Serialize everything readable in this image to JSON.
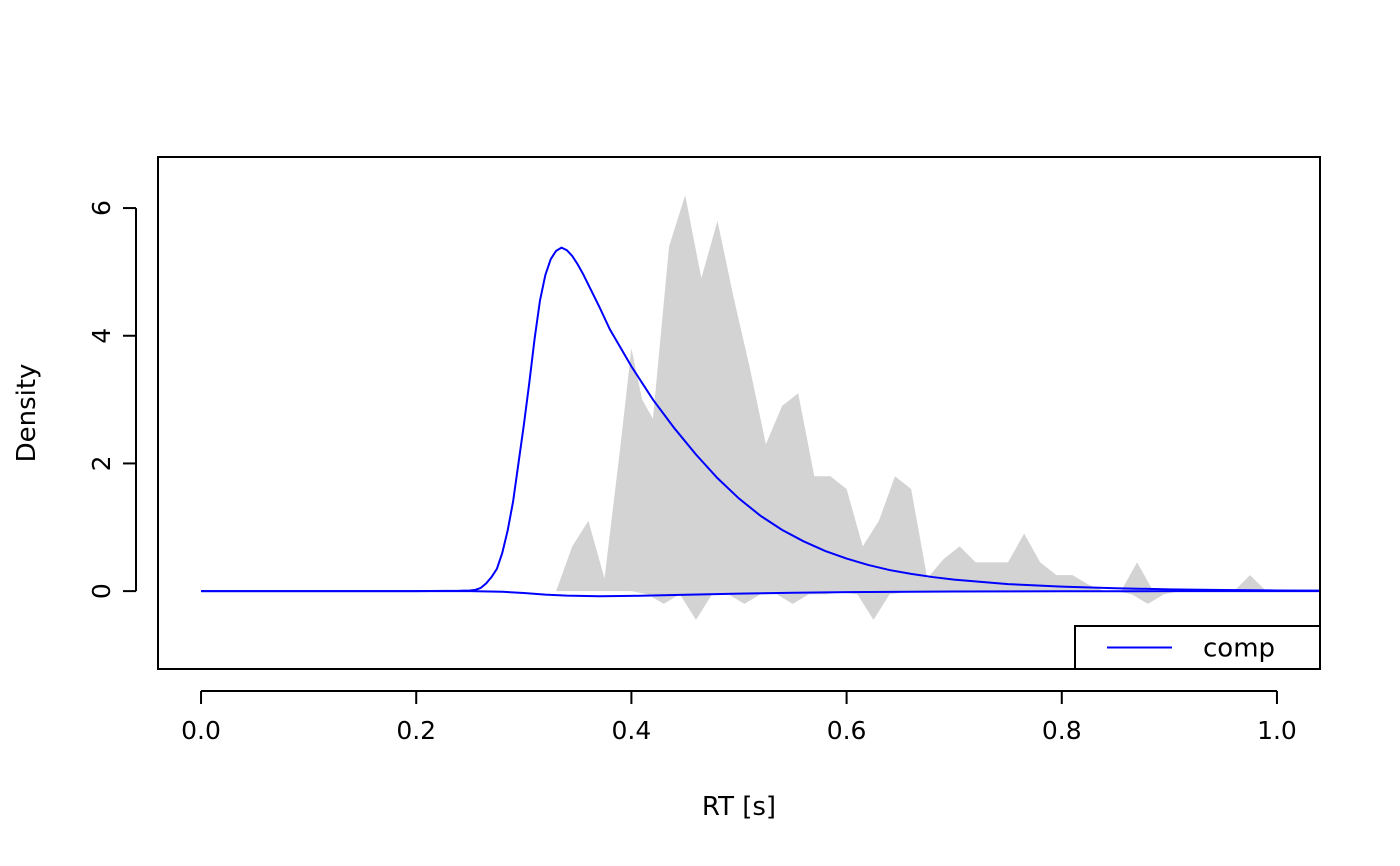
{
  "chart_data": {
    "type": "area",
    "xlabel": "RT [s]",
    "ylabel": "Density",
    "xlim": [
      -0.04,
      1.04
    ],
    "ylim": [
      -1.22,
      6.8
    ],
    "x_ticks": [
      0.0,
      0.2,
      0.4,
      0.6,
      0.8,
      1.0
    ],
    "x_tick_labels": [
      "0.0",
      "0.2",
      "0.4",
      "0.6",
      "0.8",
      "1.0"
    ],
    "y_ticks": [
      0,
      2,
      4,
      6
    ],
    "y_tick_labels": [
      "0",
      "2",
      "4",
      "6"
    ],
    "grid": false,
    "legend": {
      "position": "bottom-right",
      "entries": [
        {
          "label": "comp",
          "color": "#0000ff"
        }
      ]
    },
    "series": [
      {
        "name": "comp",
        "kind": "line",
        "color": "#0000ff",
        "x": [
          0.0,
          0.2,
          0.24,
          0.25,
          0.255,
          0.26,
          0.265,
          0.27,
          0.275,
          0.28,
          0.285,
          0.29,
          0.295,
          0.3,
          0.305,
          0.31,
          0.315,
          0.32,
          0.325,
          0.33,
          0.335,
          0.34,
          0.345,
          0.35,
          0.355,
          0.36,
          0.37,
          0.38,
          0.4,
          0.42,
          0.44,
          0.46,
          0.48,
          0.5,
          0.52,
          0.54,
          0.56,
          0.58,
          0.6,
          0.62,
          0.64,
          0.66,
          0.68,
          0.7,
          0.75,
          0.8,
          0.85,
          0.9,
          0.95,
          1.0,
          1.04
        ],
        "y": [
          0.0,
          0.0,
          0.005,
          0.01,
          0.02,
          0.05,
          0.12,
          0.22,
          0.35,
          0.6,
          0.95,
          1.4,
          2.0,
          2.6,
          3.25,
          3.95,
          4.55,
          4.95,
          5.2,
          5.33,
          5.38,
          5.34,
          5.25,
          5.12,
          4.97,
          4.8,
          4.46,
          4.1,
          3.52,
          3.0,
          2.55,
          2.14,
          1.77,
          1.45,
          1.18,
          0.96,
          0.78,
          0.63,
          0.51,
          0.41,
          0.33,
          0.27,
          0.22,
          0.18,
          0.11,
          0.07,
          0.045,
          0.028,
          0.017,
          0.01,
          0.007
        ]
      },
      {
        "name": "comp-negative",
        "kind": "line",
        "color": "#0000ff",
        "x": [
          0.0,
          0.25,
          0.28,
          0.3,
          0.32,
          0.34,
          0.37,
          0.4,
          0.44,
          0.5,
          0.55,
          0.6,
          0.7,
          0.8,
          0.9,
          1.0,
          1.04
        ],
        "y": [
          0.0,
          0.0,
          -0.01,
          -0.03,
          -0.055,
          -0.07,
          -0.08,
          -0.075,
          -0.06,
          -0.04,
          -0.025,
          -0.015,
          -0.007,
          -0.003,
          -0.001,
          0.0,
          0.0
        ]
      },
      {
        "name": "observed-positive",
        "kind": "area",
        "color": "#d3d3d3",
        "x": [
          0.0,
          0.33,
          0.345,
          0.36,
          0.375,
          0.39,
          0.4,
          0.41,
          0.42,
          0.435,
          0.45,
          0.465,
          0.48,
          0.495,
          0.51,
          0.525,
          0.54,
          0.555,
          0.57,
          0.585,
          0.6,
          0.615,
          0.63,
          0.645,
          0.66,
          0.675,
          0.69,
          0.705,
          0.72,
          0.735,
          0.75,
          0.765,
          0.78,
          0.795,
          0.81,
          0.825,
          0.84,
          0.855,
          0.87,
          0.885,
          0.9,
          0.915,
          0.93,
          0.945,
          0.96,
          0.975,
          0.99,
          1.04
        ],
        "y": [
          0.0,
          0.0,
          0.7,
          1.1,
          0.2,
          2.3,
          3.8,
          3.0,
          2.7,
          5.4,
          6.2,
          4.9,
          5.8,
          4.6,
          3.5,
          2.3,
          2.9,
          3.1,
          1.8,
          1.8,
          1.6,
          0.7,
          1.1,
          1.8,
          1.6,
          0.2,
          0.5,
          0.7,
          0.45,
          0.45,
          0.45,
          0.9,
          0.45,
          0.25,
          0.25,
          0.1,
          0.0,
          0.0,
          0.45,
          0.0,
          0.0,
          0.0,
          0.0,
          0.0,
          0.0,
          0.25,
          0.0,
          0.0
        ]
      },
      {
        "name": "observed-negative",
        "kind": "area",
        "color": "#d3d3d3",
        "x": [
          0.0,
          0.4,
          0.415,
          0.43,
          0.445,
          0.46,
          0.475,
          0.49,
          0.505,
          0.52,
          0.535,
          0.55,
          0.565,
          0.58,
          0.595,
          0.61,
          0.625,
          0.64,
          0.655,
          0.67,
          0.8,
          0.85,
          0.865,
          0.88,
          0.895,
          0.91,
          1.04
        ],
        "y": [
          0.0,
          0.0,
          -0.05,
          -0.2,
          -0.05,
          -0.45,
          -0.05,
          -0.05,
          -0.2,
          -0.05,
          -0.05,
          -0.2,
          -0.05,
          -0.05,
          -0.02,
          -0.05,
          -0.45,
          -0.05,
          -0.02,
          0.0,
          0.0,
          0.0,
          -0.05,
          -0.2,
          -0.05,
          0.0,
          0.0
        ]
      }
    ]
  }
}
